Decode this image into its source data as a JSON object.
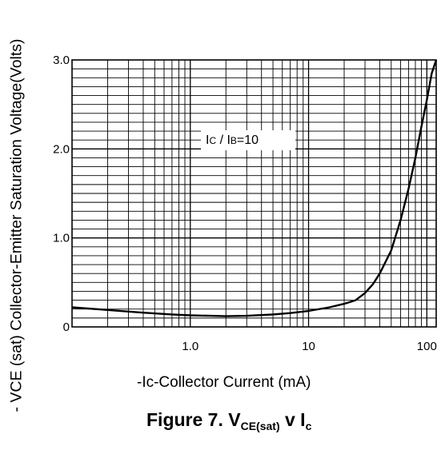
{
  "chart_data": {
    "type": "line",
    "title": "Figure 7. VCE(sat) v Ic",
    "title_parts": {
      "p1": "Figure 7. V",
      "sub1": "CE(sat)",
      "p2": " v I",
      "sub2": "c"
    },
    "xlabel": "-Ic-Collector Current  (mA)",
    "ylabel": "- VCE (sat) Collector-Emitter Saturation Voltage(Volts)",
    "xscale": "log",
    "xlim": [
      0.1,
      120
    ],
    "ylim": [
      0,
      3.0
    ],
    "xticks": [
      {
        "value": 1.0,
        "label": "1.0"
      },
      {
        "value": 10,
        "label": "10"
      },
      {
        "value": 100,
        "label": "100"
      }
    ],
    "yticks": [
      {
        "value": 0,
        "label": "0"
      },
      {
        "value": 1.0,
        "label": "1.0"
      },
      {
        "value": 2.0,
        "label": "2.0"
      },
      {
        "value": 3.0,
        "label": "3.0"
      }
    ],
    "grid": true,
    "annotation": {
      "text": "IC / IB=10",
      "parts": {
        "p1": "I",
        "s1": "C",
        "p2": " / I",
        "s2": "B",
        "p3": "=10"
      }
    },
    "series": [
      {
        "name": "",
        "x": [
          0.1,
          0.2,
          0.4,
          0.7,
          1.0,
          1.5,
          2.0,
          3.0,
          5.0,
          7.0,
          10,
          15,
          20,
          25,
          30,
          35,
          40,
          50,
          60,
          70,
          80,
          90,
          100,
          110,
          120
        ],
        "y": [
          0.22,
          0.19,
          0.16,
          0.14,
          0.13,
          0.125,
          0.12,
          0.125,
          0.14,
          0.155,
          0.18,
          0.22,
          0.26,
          0.3,
          0.38,
          0.48,
          0.6,
          0.86,
          1.2,
          1.55,
          1.9,
          2.25,
          2.55,
          2.85,
          3.0
        ]
      }
    ]
  }
}
